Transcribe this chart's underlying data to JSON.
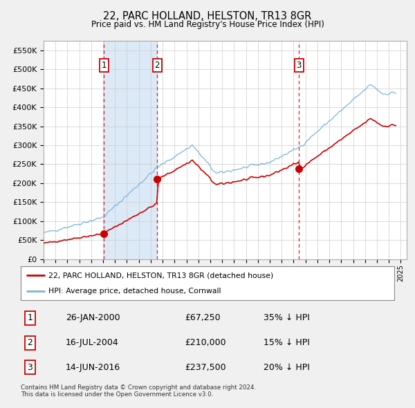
{
  "title": "22, PARC HOLLAND, HELSTON, TR13 8GR",
  "subtitle": "Price paid vs. HM Land Registry's House Price Index (HPI)",
  "ylim": [
    0,
    575000
  ],
  "yticks": [
    0,
    50000,
    100000,
    150000,
    200000,
    250000,
    300000,
    350000,
    400000,
    450000,
    500000,
    550000
  ],
  "ytick_labels": [
    "£0",
    "£50K",
    "£100K",
    "£150K",
    "£200K",
    "£250K",
    "£300K",
    "£350K",
    "£400K",
    "£450K",
    "£500K",
    "£550K"
  ],
  "xlim_start": 1995.0,
  "xlim_end": 2025.5,
  "figure_bg": "#f0f0f0",
  "plot_bg_color": "#ffffff",
  "hpi_color": "#7ab4d8",
  "price_color": "#cc0000",
  "shade_color": "#dce9f7",
  "transactions": [
    {
      "num": 1,
      "date_x": 2000.07,
      "price": 67250,
      "label": "26-JAN-2000",
      "price_str": "£67,250",
      "hpi_diff": "35% ↓ HPI"
    },
    {
      "num": 2,
      "date_x": 2004.54,
      "price": 210000,
      "label": "16-JUL-2004",
      "price_str": "£210,000",
      "hpi_diff": "15% ↓ HPI"
    },
    {
      "num": 3,
      "date_x": 2016.45,
      "price": 237500,
      "label": "14-JUN-2016",
      "price_str": "£237,500",
      "hpi_diff": "20% ↓ HPI"
    }
  ],
  "legend_entries": [
    "22, PARC HOLLAND, HELSTON, TR13 8GR (detached house)",
    "HPI: Average price, detached house, Cornwall"
  ],
  "footer": "Contains HM Land Registry data © Crown copyright and database right 2024.\nThis data is licensed under the Open Government Licence v3.0."
}
